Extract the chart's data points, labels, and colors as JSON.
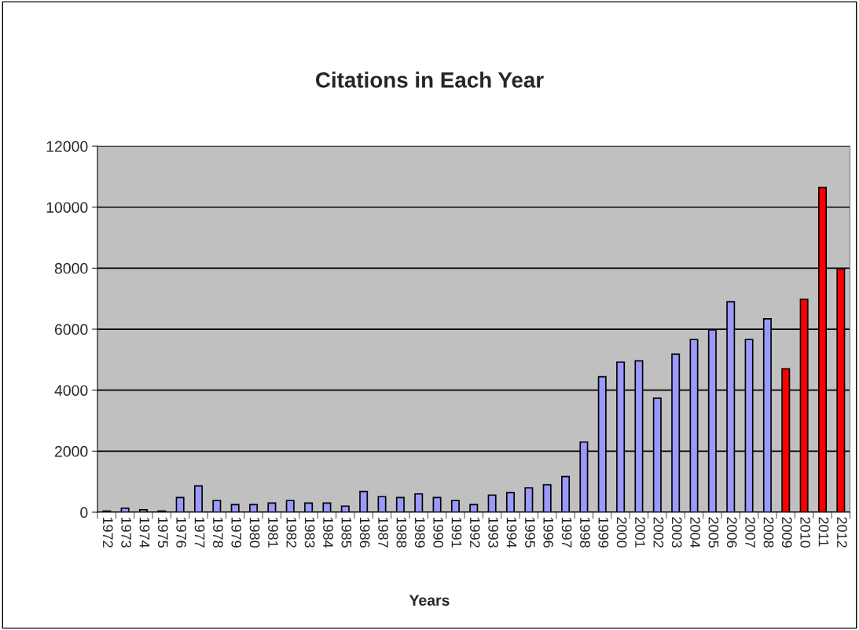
{
  "chart_data": {
    "type": "bar",
    "title": "Citations in Each Year",
    "xlabel": "Years",
    "categories": [
      "1972",
      "1973",
      "1974",
      "1975",
      "1976",
      "1977",
      "1978",
      "1979",
      "1980",
      "1981",
      "1982",
      "1983",
      "1984",
      "1985",
      "1986",
      "1987",
      "1988",
      "1989",
      "1990",
      "1991",
      "1992",
      "1993",
      "1994",
      "1995",
      "1996",
      "1997",
      "1998",
      "1999",
      "2000",
      "2001",
      "2002",
      "2003",
      "2004",
      "2005",
      "2006",
      "2007",
      "2008",
      "2009",
      "2010",
      "2011",
      "2012"
    ],
    "values": [
      40,
      130,
      80,
      40,
      480,
      860,
      380,
      250,
      250,
      300,
      380,
      300,
      300,
      200,
      680,
      510,
      480,
      600,
      480,
      380,
      250,
      560,
      640,
      800,
      900,
      1170,
      2300,
      4440,
      4920,
      4960,
      3740,
      5180,
      5660,
      5980,
      6900,
      5660,
      6340,
      4700,
      6980,
      10650,
      7980
    ],
    "colors": [
      "#9999ff",
      "#9999ff",
      "#9999ff",
      "#9999ff",
      "#9999ff",
      "#9999ff",
      "#9999ff",
      "#9999ff",
      "#9999ff",
      "#9999ff",
      "#9999ff",
      "#9999ff",
      "#9999ff",
      "#9999ff",
      "#9999ff",
      "#9999ff",
      "#9999ff",
      "#9999ff",
      "#9999ff",
      "#9999ff",
      "#9999ff",
      "#9999ff",
      "#9999ff",
      "#9999ff",
      "#9999ff",
      "#9999ff",
      "#9999ff",
      "#9999ff",
      "#9999ff",
      "#9999ff",
      "#9999ff",
      "#9999ff",
      "#9999ff",
      "#9999ff",
      "#9999ff",
      "#9999ff",
      "#9999ff",
      "#ff0000",
      "#ff0000",
      "#ff0000",
      "#ff0000"
    ],
    "ylim": [
      0,
      12000
    ],
    "yticks": [
      0,
      2000,
      4000,
      6000,
      8000,
      10000,
      12000
    ],
    "grid": "y"
  }
}
